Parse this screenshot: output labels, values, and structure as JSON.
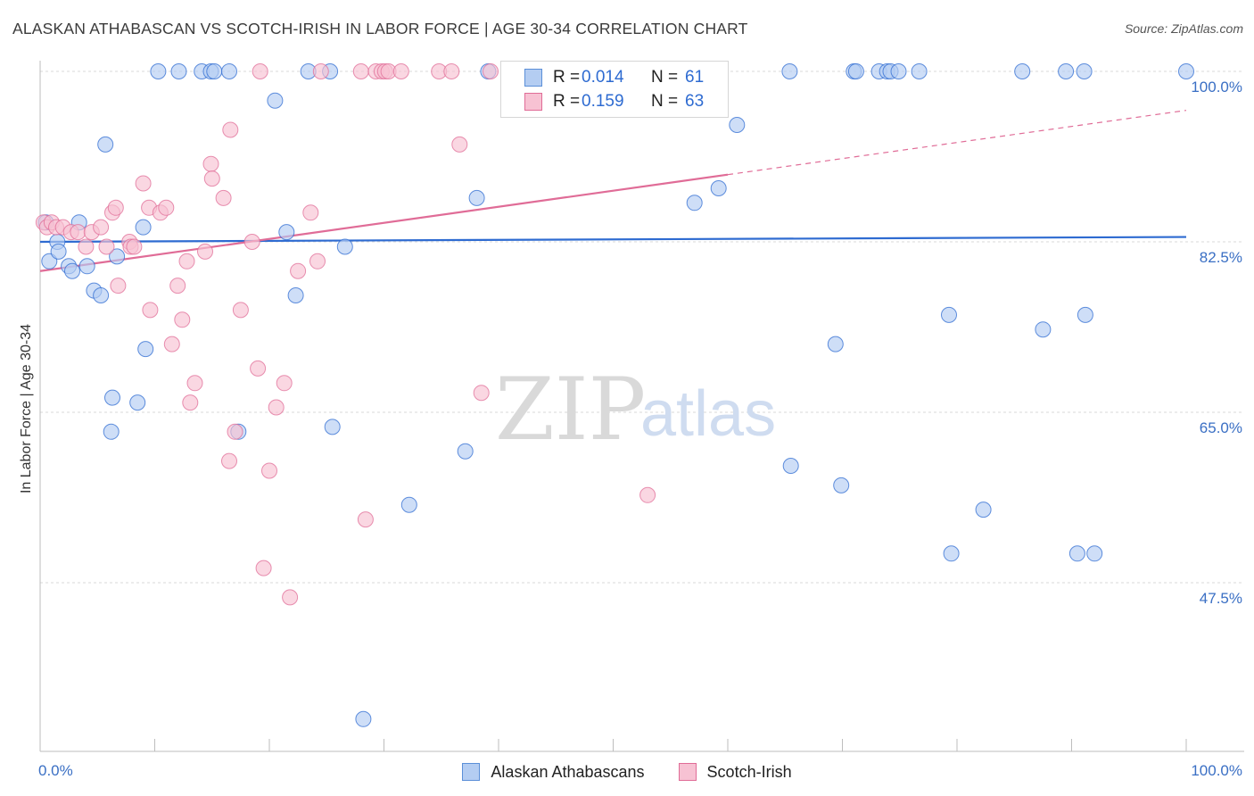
{
  "header": {
    "title": "ALASKAN ATHABASCAN VS SCOTCH-IRISH IN LABOR FORCE | AGE 30-34 CORRELATION CHART",
    "source": "Source: ZipAtlas.com"
  },
  "watermark": {
    "zip": "ZIP",
    "atlas": "atlas"
  },
  "legend": {
    "blue": {
      "r_label": "R =",
      "r_value": "0.014",
      "n_label": "N =",
      "n_value": "61"
    },
    "pink": {
      "r_label": "R =",
      "r_value": "0.159",
      "n_label": "N =",
      "n_value": "63"
    }
  },
  "chart_data": {
    "type": "scatter",
    "title": "ALASKAN ATHABASCAN VS SCOTCH-IRISH IN LABOR FORCE | AGE 30-34 CORRELATION CHART",
    "xlabel": "",
    "ylabel": "In Labor Force | Age 30-34",
    "xlim": [
      0,
      100
    ],
    "ylim": [
      32,
      102
    ],
    "x_tick_labels": [
      "0.0%",
      "100.0%"
    ],
    "y_ticks": [
      47.5,
      65.0,
      82.5,
      100.0
    ],
    "y_tick_labels": [
      "47.5%",
      "65.0%",
      "82.5%",
      "100.0%"
    ],
    "x_minor_ticks": [
      0,
      10,
      20,
      30,
      40,
      50,
      60,
      70,
      80,
      90,
      100
    ],
    "colors": {
      "blue": "#5b8fd8",
      "blue_fill": "#a9c7f0",
      "pink": "#e06c97",
      "pink_fill": "#f5b8cb"
    },
    "series": [
      {
        "name": "Alaskan Athabascans",
        "color": "#2e6bd1",
        "fill": "#b4cdf2",
        "trend": {
          "x": [
            0,
            100
          ],
          "y": [
            82.5,
            83.0
          ],
          "dashed_from": null
        },
        "points": [
          [
            0.5,
            84.5
          ],
          [
            0.8,
            80.5
          ],
          [
            1.5,
            82.5
          ],
          [
            1.6,
            81.5
          ],
          [
            2.5,
            80.0
          ],
          [
            2.8,
            79.5
          ],
          [
            3.4,
            84.5
          ],
          [
            4.1,
            80.0
          ],
          [
            4.7,
            77.5
          ],
          [
            5.3,
            77.0
          ],
          [
            5.7,
            92.5
          ],
          [
            6.3,
            66.5
          ],
          [
            6.2,
            63.0
          ],
          [
            6.7,
            81.0
          ],
          [
            8.5,
            66.0
          ],
          [
            9.0,
            84.0
          ],
          [
            9.2,
            71.5
          ],
          [
            10.3,
            100.0
          ],
          [
            12.1,
            100.0
          ],
          [
            14.1,
            100.0
          ],
          [
            14.9,
            100.0
          ],
          [
            15.2,
            100.0
          ],
          [
            16.5,
            100.0
          ],
          [
            17.3,
            63.0
          ],
          [
            20.5,
            97.0
          ],
          [
            21.5,
            83.5
          ],
          [
            22.3,
            77.0
          ],
          [
            23.4,
            100.0
          ],
          [
            25.3,
            100.0
          ],
          [
            25.5,
            63.5
          ],
          [
            26.6,
            82.0
          ],
          [
            28.2,
            33.5
          ],
          [
            32.2,
            55.5
          ],
          [
            37.1,
            61.0
          ],
          [
            38.1,
            87.0
          ],
          [
            39.1,
            100.0
          ],
          [
            57.1,
            86.5
          ],
          [
            59.2,
            88.0
          ],
          [
            60.8,
            94.5
          ],
          [
            65.4,
            100.0
          ],
          [
            65.5,
            59.5
          ],
          [
            69.4,
            72.0
          ],
          [
            69.9,
            57.5
          ],
          [
            71.0,
            100.0
          ],
          [
            71.2,
            100.0
          ],
          [
            73.2,
            100.0
          ],
          [
            73.9,
            100.0
          ],
          [
            74.2,
            100.0
          ],
          [
            74.9,
            100.0
          ],
          [
            76.7,
            100.0
          ],
          [
            79.3,
            75.0
          ],
          [
            79.5,
            50.5
          ],
          [
            82.3,
            55.0
          ],
          [
            85.7,
            100.0
          ],
          [
            87.5,
            73.5
          ],
          [
            89.5,
            100.0
          ],
          [
            90.5,
            50.5
          ],
          [
            91.1,
            100.0
          ],
          [
            91.2,
            75.0
          ],
          [
            92.0,
            50.5
          ],
          [
            100.0,
            100.0
          ]
        ]
      },
      {
        "name": "Scotch-Irish",
        "color": "#e06c97",
        "fill": "#f7c2d3",
        "trend": {
          "x": [
            0,
            100
          ],
          "y": [
            79.5,
            96.0
          ],
          "solid_until_x": 60
        },
        "points": [
          [
            0.3,
            84.5
          ],
          [
            0.6,
            84.0
          ],
          [
            1.0,
            84.5
          ],
          [
            1.4,
            84.0
          ],
          [
            2.0,
            84.0
          ],
          [
            2.7,
            83.5
          ],
          [
            3.3,
            83.5
          ],
          [
            4.0,
            82.0
          ],
          [
            4.5,
            83.5
          ],
          [
            5.3,
            84.0
          ],
          [
            5.8,
            82.0
          ],
          [
            6.3,
            85.5
          ],
          [
            6.6,
            86.0
          ],
          [
            6.8,
            78.0
          ],
          [
            7.8,
            82.5
          ],
          [
            7.9,
            82.0
          ],
          [
            8.2,
            82.0
          ],
          [
            9.0,
            88.5
          ],
          [
            9.5,
            86.0
          ],
          [
            9.6,
            75.5
          ],
          [
            10.5,
            85.5
          ],
          [
            11.0,
            86.0
          ],
          [
            11.5,
            72.0
          ],
          [
            12.0,
            78.0
          ],
          [
            12.4,
            74.5
          ],
          [
            12.8,
            80.5
          ],
          [
            13.1,
            66.0
          ],
          [
            13.5,
            68.0
          ],
          [
            14.4,
            81.5
          ],
          [
            14.9,
            90.5
          ],
          [
            15.0,
            89.0
          ],
          [
            16.0,
            87.0
          ],
          [
            16.5,
            60.0
          ],
          [
            16.6,
            94.0
          ],
          [
            17.0,
            63.0
          ],
          [
            17.5,
            75.5
          ],
          [
            18.5,
            82.5
          ],
          [
            19.0,
            69.5
          ],
          [
            19.2,
            100.0
          ],
          [
            19.5,
            49.0
          ],
          [
            20.0,
            59.0
          ],
          [
            20.6,
            65.5
          ],
          [
            21.3,
            68.0
          ],
          [
            21.8,
            46.0
          ],
          [
            22.5,
            79.5
          ],
          [
            23.6,
            85.5
          ],
          [
            24.2,
            80.5
          ],
          [
            24.5,
            100.0
          ],
          [
            28.0,
            100.0
          ],
          [
            28.4,
            54.0
          ],
          [
            29.3,
            100.0
          ],
          [
            29.8,
            100.0
          ],
          [
            30.1,
            100.0
          ],
          [
            30.4,
            100.0
          ],
          [
            31.5,
            100.0
          ],
          [
            34.8,
            100.0
          ],
          [
            35.9,
            100.0
          ],
          [
            36.6,
            92.5
          ],
          [
            38.5,
            67.0
          ],
          [
            39.3,
            100.0
          ],
          [
            53.0,
            56.5
          ],
          [
            56.0,
            100.0
          ],
          [
            58.0,
            100.0
          ]
        ]
      }
    ]
  }
}
